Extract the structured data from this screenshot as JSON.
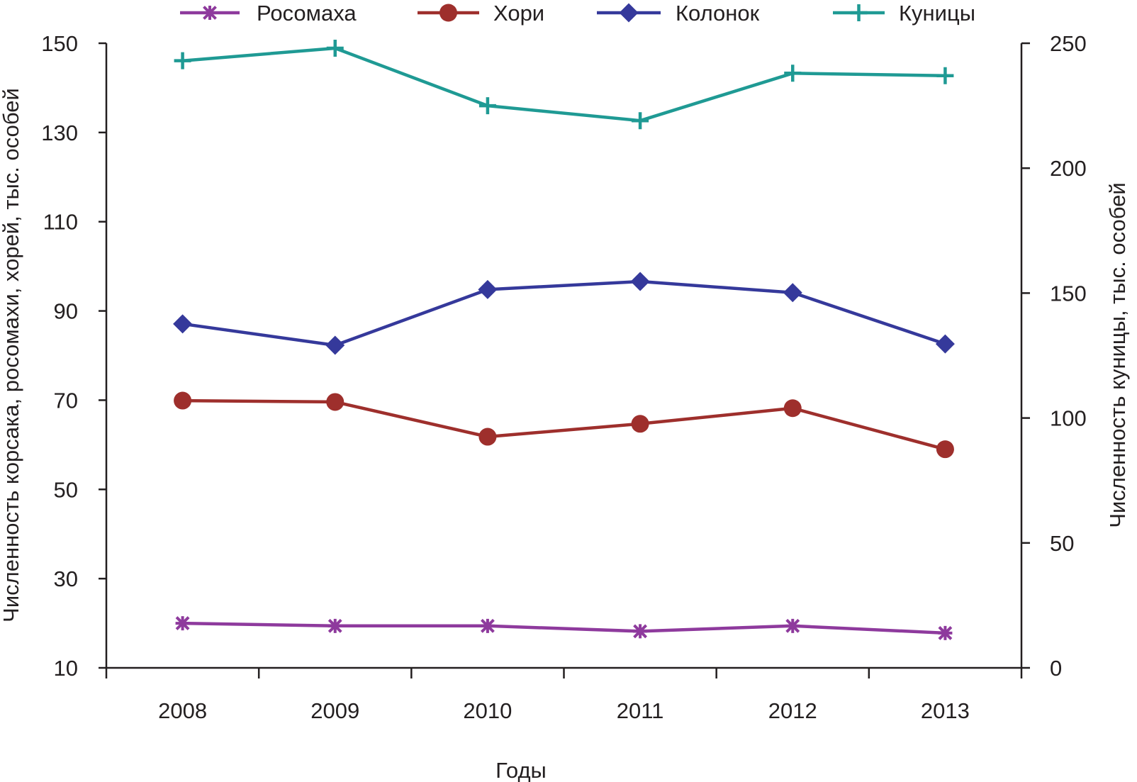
{
  "chart_data": {
    "type": "line",
    "title": "",
    "xlabel": "Годы",
    "ylabel_left": "Численность корсака, росомахи, хорей, тыс. особей",
    "ylabel_right": "Численность куницы, тыс. особей",
    "categories": [
      "2008",
      "2009",
      "2010",
      "2011",
      "2012",
      "2013"
    ],
    "ylim_left": [
      10,
      150
    ],
    "yticks_left": [
      10,
      30,
      50,
      70,
      90,
      110,
      130,
      150
    ],
    "ylim_right": [
      0,
      250
    ],
    "yticks_right": [
      0,
      50,
      100,
      150,
      200,
      250
    ],
    "grid": false,
    "legend_position": "top",
    "series": [
      {
        "name": "Росомаха",
        "axis": "left",
        "marker": "asterisk",
        "color": "#8e3a9d",
        "values": [
          20.0,
          19.4,
          19.4,
          18.2,
          19.4,
          17.8
        ]
      },
      {
        "name": "Хори",
        "axis": "left",
        "marker": "circle",
        "color": "#9e2f2c",
        "values": [
          69.9,
          69.6,
          61.8,
          64.7,
          68.2,
          59.0
        ]
      },
      {
        "name": "Колонок",
        "axis": "left",
        "marker": "diamond",
        "color": "#35399b",
        "values": [
          87.1,
          82.3,
          94.8,
          96.6,
          94.1,
          82.6
        ]
      },
      {
        "name": "Куницы",
        "axis": "right",
        "marker": "plus",
        "color": "#1f9a94",
        "values": [
          243,
          248,
          225,
          219,
          238,
          237
        ]
      }
    ]
  }
}
